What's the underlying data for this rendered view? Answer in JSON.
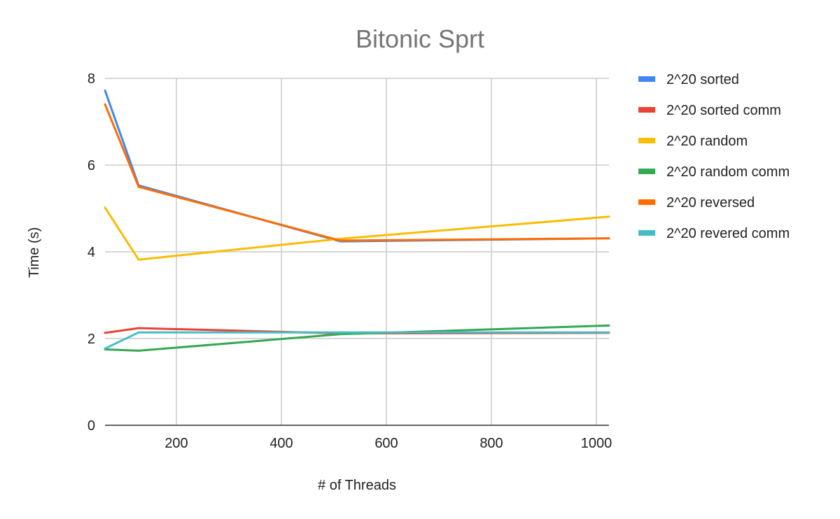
{
  "chart_data": {
    "type": "line",
    "title": "Bitonic Sprt",
    "xlabel": "# of Threads",
    "ylabel": "Time (s)",
    "xlim": [
      64,
      1024
    ],
    "ylim": [
      0,
      8
    ],
    "xticks": [
      200,
      400,
      600,
      800,
      1000
    ],
    "yticks": [
      0,
      2,
      4,
      6,
      8
    ],
    "grid": true,
    "legend_position": "right",
    "x": [
      64,
      128,
      512,
      1024
    ],
    "series": [
      {
        "name": "2^20 sorted",
        "color": "#4285F4",
        "values": [
          7.72,
          5.53,
          4.24,
          4.31
        ]
      },
      {
        "name": "2^20 sorted comm",
        "color": "#EA4335",
        "values": [
          2.13,
          2.24,
          2.12,
          2.13
        ]
      },
      {
        "name": "2^20 random",
        "color": "#FBBC04",
        "values": [
          5.02,
          3.82,
          4.3,
          4.81
        ]
      },
      {
        "name": "2^20 random comm",
        "color": "#34A853",
        "values": [
          1.75,
          1.72,
          2.1,
          2.3
        ]
      },
      {
        "name": "2^20 reversed",
        "color": "#FF6D01",
        "values": [
          7.4,
          5.5,
          4.26,
          4.31
        ]
      },
      {
        "name": "2^20 revered comm",
        "color": "#46BDC6",
        "values": [
          1.77,
          2.14,
          2.14,
          2.14
        ]
      }
    ]
  }
}
